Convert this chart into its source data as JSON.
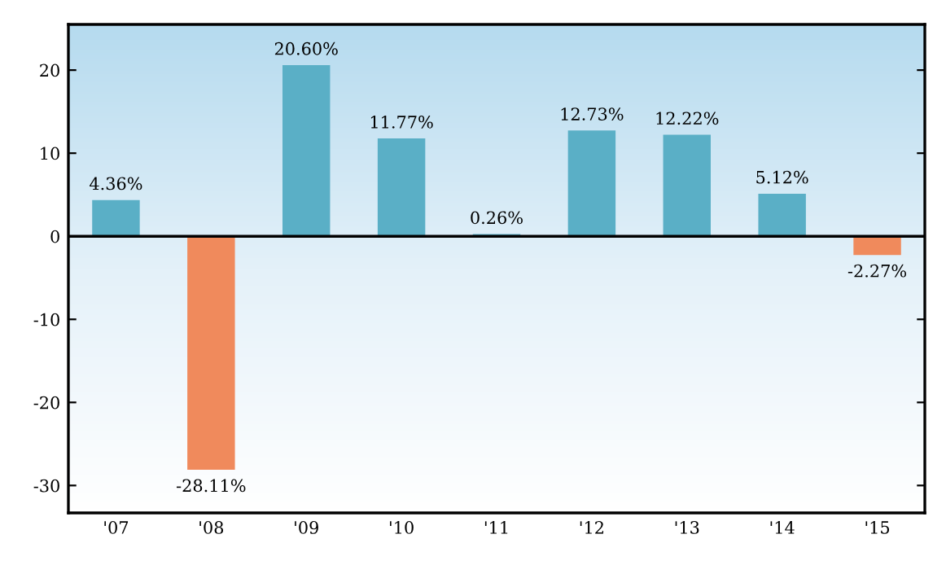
{
  "chart_data": {
    "type": "bar",
    "categories": [
      "'07",
      "'08",
      "'09",
      "'10",
      "'11",
      "'12",
      "'13",
      "'14",
      "'15"
    ],
    "values": [
      4.36,
      -28.11,
      20.6,
      11.77,
      0.26,
      12.73,
      12.22,
      5.12,
      -2.27
    ],
    "colors": [
      "#5aafc6",
      "#f08a5c",
      "#5aafc6",
      "#5aafc6",
      "#5aafc6",
      "#5aafc6",
      "#5aafc6",
      "#5aafc6",
      "#f08a5c"
    ],
    "value_labels": [
      "4.36%",
      "-28.11%",
      "20.60%",
      "11.77%",
      "0.26%",
      "12.73%",
      "12.22%",
      "5.12%",
      "-2.27%"
    ],
    "ylim": [
      -33.3,
      25.5
    ],
    "yticks": [
      -30,
      -20,
      -10,
      0,
      10,
      20
    ],
    "ref_lines": [
      {
        "axis": "y",
        "value": 0,
        "color": "#000000"
      }
    ],
    "grid": false,
    "legend": false
  }
}
